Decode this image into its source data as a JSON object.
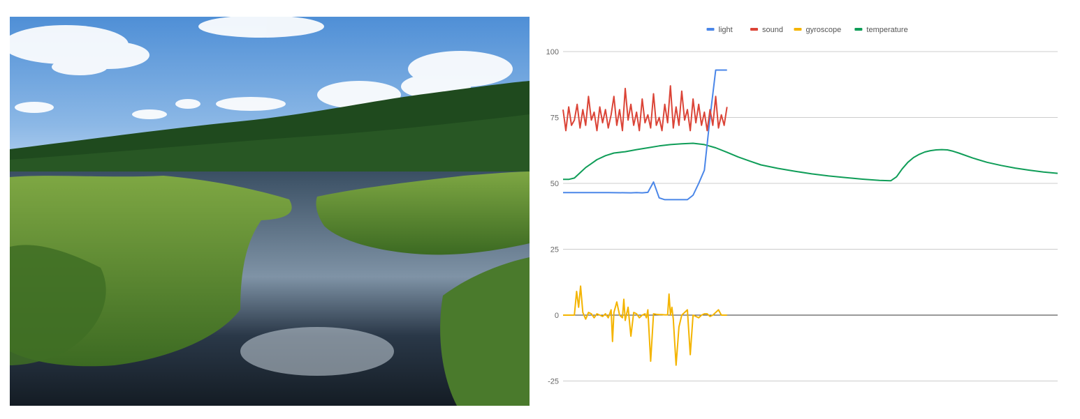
{
  "photo": {
    "subject": "marsh-landscape-photo",
    "colors": {
      "sky_top": "#4f8fd6",
      "sky_bottom": "#cfe2f6",
      "forest": "#1f4a1e",
      "grass": "#5f8d34",
      "water": "#1c2a38"
    }
  },
  "chart_data": {
    "type": "line",
    "title": "",
    "xlabel": "",
    "ylabel": "",
    "ylim": [
      -30,
      100
    ],
    "yticks": [
      100,
      75,
      50,
      25,
      0,
      -25
    ],
    "grid": true,
    "legend_position": "top-center",
    "x_range": [
      0,
      175
    ],
    "series": [
      {
        "name": "light",
        "color": "#4a86e8",
        "x": [
          0,
          8,
          16,
          24,
          26,
          28,
          30,
          32,
          34,
          36,
          38,
          40,
          42,
          44,
          46,
          48,
          50,
          52,
          54,
          56,
          57,
          58
        ],
        "y": [
          46.5,
          46.5,
          46.5,
          46.4,
          46.5,
          46.4,
          46.6,
          50.5,
          44.5,
          43.8,
          43.8,
          43.8,
          43.8,
          43.8,
          45.5,
          50,
          55,
          75,
          93,
          93,
          93,
          93
        ]
      },
      {
        "name": "sound",
        "color": "#db4437",
        "x": [
          0,
          1,
          2,
          3,
          4,
          5,
          6,
          7,
          8,
          9,
          10,
          11,
          12,
          13,
          14,
          15,
          16,
          17,
          18,
          19,
          20,
          21,
          22,
          23,
          24,
          25,
          26,
          27,
          28,
          29,
          30,
          31,
          32,
          33,
          34,
          35,
          36,
          37,
          38,
          39,
          40,
          41,
          42,
          43,
          44,
          45,
          46,
          47,
          48,
          49,
          50,
          51,
          52,
          53,
          54,
          55,
          56,
          57,
          58
        ],
        "y": [
          78,
          70,
          79,
          72,
          74,
          80,
          71,
          78,
          72,
          83,
          74,
          77,
          70,
          79,
          73,
          78,
          71,
          76,
          83,
          72,
          78,
          70,
          86,
          74,
          80,
          72,
          77,
          70,
          82,
          73,
          76,
          71,
          84,
          72,
          75,
          70,
          80,
          73,
          87,
          71,
          79,
          72,
          85,
          74,
          78,
          70,
          82,
          73,
          80,
          72,
          77,
          70,
          78,
          72,
          83,
          71,
          76,
          72,
          79
        ]
      },
      {
        "name": "gyroscope",
        "color": "#f4b400",
        "x": [
          0,
          2,
          4,
          4.8,
          5.5,
          6.2,
          7,
          8,
          9,
          10,
          11,
          12,
          13,
          14,
          15,
          16,
          17,
          17.5,
          18,
          19,
          20,
          21,
          21.5,
          22,
          23,
          24,
          25,
          26,
          27,
          28,
          29,
          29.5,
          30,
          31,
          32,
          33,
          34,
          35,
          36,
          37,
          37.5,
          38,
          38.5,
          39,
          40,
          41,
          42,
          43,
          44,
          45,
          46,
          47,
          48,
          49,
          50,
          51,
          52,
          53,
          54,
          55,
          56,
          57,
          58
        ],
        "y": [
          0,
          0,
          0,
          9,
          3,
          11,
          1,
          -1.5,
          1,
          0.5,
          -1,
          0.5,
          0,
          -0.5,
          0.5,
          -1,
          2,
          -10,
          1,
          5,
          0,
          -1,
          6,
          -2,
          3,
          -8,
          1,
          0.5,
          -1,
          0,
          0.5,
          -1,
          2,
          -17.5,
          0.5,
          0.3,
          0.2,
          0.2,
          0.1,
          0.1,
          8,
          0,
          3,
          -1.5,
          -19,
          -4.5,
          0,
          1,
          2,
          -15,
          0,
          -0.5,
          -1,
          0,
          0.5,
          0.5,
          -0.5,
          0,
          1,
          2,
          0,
          0,
          0
        ]
      },
      {
        "name": "temperature",
        "color": "#0f9d58",
        "x": [
          0,
          2,
          4,
          6,
          8,
          10,
          12,
          15,
          18,
          22,
          26,
          30,
          34,
          38,
          42,
          46,
          50,
          54,
          58,
          62,
          66,
          70,
          76,
          82,
          88,
          94,
          100,
          106,
          112,
          116,
          118,
          120,
          122,
          124,
          126,
          128,
          130,
          132,
          134,
          136,
          138,
          140,
          145,
          150,
          155,
          160,
          165,
          170,
          175
        ],
        "y": [
          51.5,
          51.5,
          52,
          54,
          56,
          57.5,
          59,
          60.5,
          61.5,
          62,
          62.8,
          63.5,
          64.2,
          64.7,
          65,
          65.2,
          64.7,
          63.5,
          61.8,
          60,
          58.5,
          57,
          55.7,
          54.6,
          53.6,
          52.8,
          52.2,
          51.6,
          51.1,
          51,
          52.5,
          55.5,
          58,
          59.8,
          61,
          61.9,
          62.4,
          62.7,
          62.8,
          62.7,
          62.2,
          61.5,
          59.6,
          58,
          56.8,
          55.8,
          55,
          54.3,
          53.8
        ]
      }
    ]
  }
}
